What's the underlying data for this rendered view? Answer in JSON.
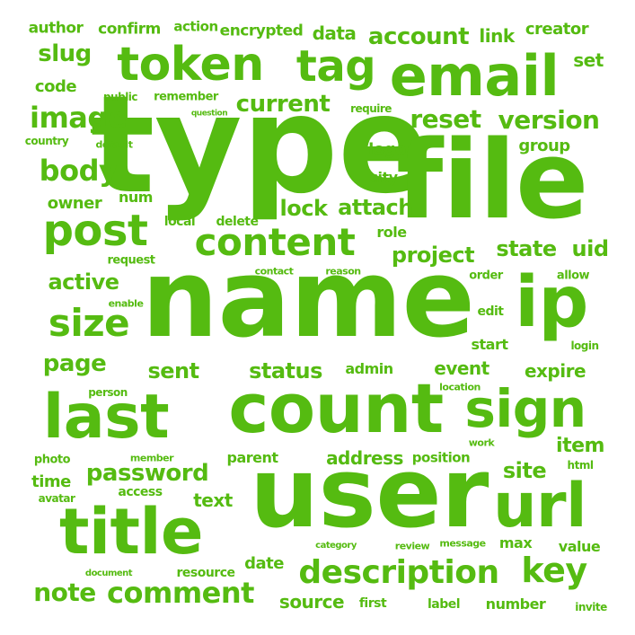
{
  "color": "#55bb11",
  "words": [
    "type",
    "file",
    "name",
    "user",
    "count",
    "email",
    "token",
    "title",
    "last",
    "sign",
    "url",
    "ip",
    "tag",
    "post",
    "content",
    "description",
    "key",
    "comment",
    "size",
    "image",
    "body",
    "account",
    "reset",
    "version",
    "current",
    "status",
    "note",
    "password",
    "sent",
    "page",
    "state",
    "project",
    "active",
    "site",
    "lock",
    "attach",
    "slug",
    "uid",
    "item",
    "text",
    "event",
    "expire",
    "address",
    "source",
    "time",
    "data",
    "link",
    "creator",
    "author",
    "confirm",
    "encrypted",
    "action",
    "set",
    "code",
    "group",
    "logo",
    "owner",
    "num",
    "city",
    "role",
    "date",
    "admin",
    "start",
    "edit",
    "max",
    "value",
    "number",
    "first",
    "label",
    "parent",
    "position",
    "access",
    "resource",
    "local",
    "delete",
    "request",
    "enable",
    "photo",
    "avatar",
    "person",
    "member",
    "contact",
    "reason",
    "order",
    "allow",
    "login",
    "location",
    "work",
    "html",
    "public",
    "remember",
    "question",
    "require",
    "country",
    "default",
    "category",
    "review",
    "message",
    "document",
    "invite"
  ]
}
